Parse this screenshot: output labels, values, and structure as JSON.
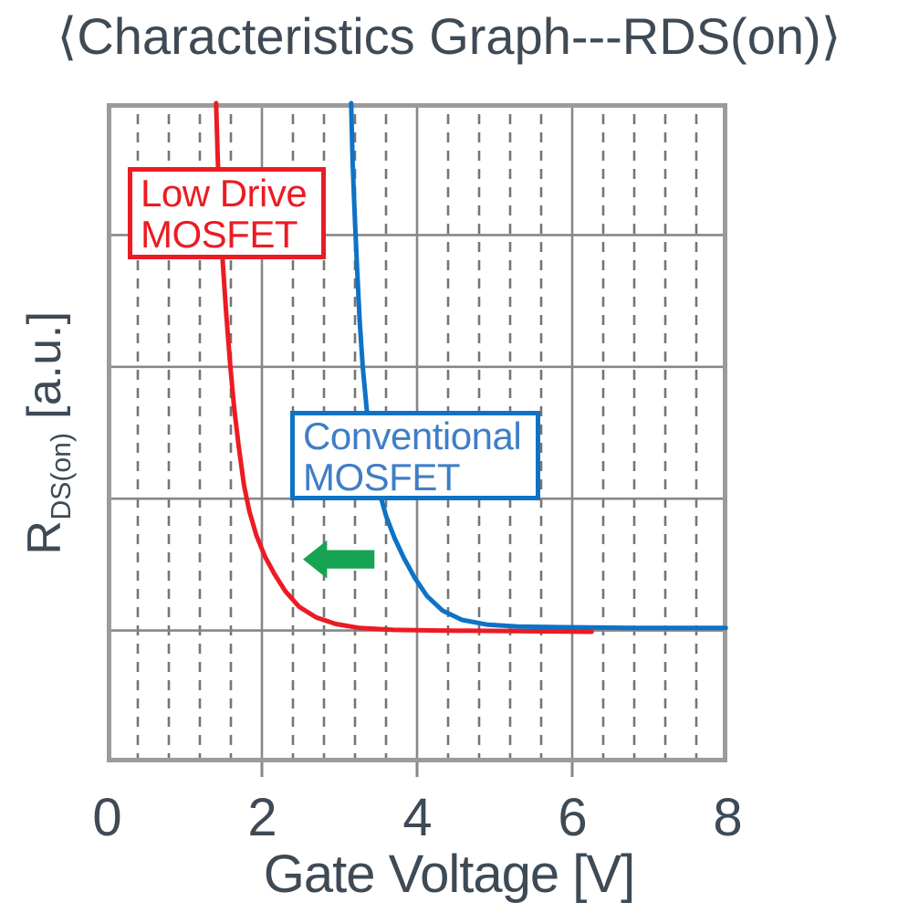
{
  "title": "⟨Characteristics Graph---RDS(on)⟩",
  "colors": {
    "text": "#3e4a55",
    "red": "#ec1b23",
    "blue": "#0e72c6",
    "blue_text": "#3f7ec6",
    "green": "#17a452",
    "grid_major": "#878787",
    "grid_minor": "#757575",
    "plot_border": "#9b9b9b",
    "background": "#ffffff"
  },
  "chart_data": {
    "type": "line",
    "title": "⟨Characteristics Graph---RDS(on)⟩",
    "xlabel": "Gate Voltage [V]",
    "ylabel": "RDS(on) [a.u.]",
    "ylabel_parts": {
      "symbol": "R",
      "subscript": "DS(on)",
      "unit": " [a.u.]"
    },
    "xlim": [
      0,
      8
    ],
    "x_ticks": [
      0,
      2,
      4,
      6,
      8
    ],
    "x_minor_step": 0.4,
    "ylim": [
      0,
      5
    ],
    "y_major_step": 1,
    "y_tick_labels": [],
    "grid": "on",
    "legend_position": "inline-boxes",
    "series": [
      {
        "id": "low-drive",
        "name": "Low Drive MOSFET",
        "color_key": "red",
        "points": [
          [
            1.41,
            5.0
          ],
          [
            1.43,
            4.6
          ],
          [
            1.46,
            4.15
          ],
          [
            1.5,
            3.75
          ],
          [
            1.54,
            3.4
          ],
          [
            1.59,
            3.02
          ],
          [
            1.64,
            2.7
          ],
          [
            1.7,
            2.4
          ],
          [
            1.77,
            2.1
          ],
          [
            1.84,
            1.9
          ],
          [
            1.93,
            1.72
          ],
          [
            2.04,
            1.56
          ],
          [
            2.16,
            1.43
          ],
          [
            2.3,
            1.3
          ],
          [
            2.48,
            1.18
          ],
          [
            2.7,
            1.1
          ],
          [
            2.95,
            1.05
          ],
          [
            3.25,
            1.02
          ],
          [
            3.7,
            1.005
          ],
          [
            4.3,
            1.0
          ],
          [
            5.3,
            0.995
          ],
          [
            6.25,
            0.99
          ]
        ]
      },
      {
        "id": "conventional",
        "name": "Conventional MOSFET",
        "color_key": "blue",
        "points": [
          [
            3.15,
            5.0
          ],
          [
            3.17,
            4.55
          ],
          [
            3.2,
            4.1
          ],
          [
            3.23,
            3.7
          ],
          [
            3.26,
            3.35
          ],
          [
            3.3,
            3.0
          ],
          [
            3.35,
            2.68
          ],
          [
            3.42,
            2.35
          ],
          [
            3.5,
            2.08
          ],
          [
            3.6,
            1.87
          ],
          [
            3.71,
            1.7
          ],
          [
            3.83,
            1.55
          ],
          [
            3.97,
            1.4
          ],
          [
            4.13,
            1.26
          ],
          [
            4.33,
            1.15
          ],
          [
            4.58,
            1.08
          ],
          [
            4.9,
            1.045
          ],
          [
            5.3,
            1.03
          ],
          [
            5.9,
            1.025
          ],
          [
            6.8,
            1.02
          ],
          [
            7.98,
            1.02
          ]
        ]
      }
    ],
    "labels": {
      "low_drive": {
        "line1": "Low Drive",
        "line2": "MOSFET"
      },
      "conventional": {
        "line1": "Conventional",
        "line2": "MOSFET"
      }
    },
    "annotations": {
      "arrow": {
        "direction": "left",
        "tip": [
          2.53,
          1.54
        ],
        "tail_v": 3.45,
        "head_len_v": 0.31,
        "head_height_r": 0.29,
        "shaft_height_r": 0.14,
        "color_key": "green"
      }
    }
  }
}
